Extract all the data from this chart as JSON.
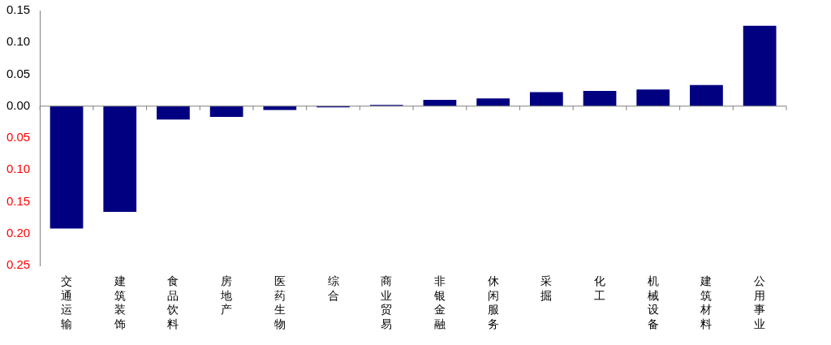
{
  "chart_data": {
    "type": "bar",
    "categories": [
      "交通运输",
      "建筑装饰",
      "食品饮料",
      "房地产",
      "医药生物",
      "综合",
      "商业贸易",
      "非银金融",
      "休闲服务",
      "采掘",
      "化工",
      "机械设备",
      "建筑材料",
      "公用事业"
    ],
    "values": [
      -0.192,
      -0.166,
      -0.021,
      -0.017,
      -0.006,
      -0.002,
      0.002,
      0.01,
      0.012,
      0.022,
      0.024,
      0.026,
      0.033,
      0.126
    ],
    "color": "#000080",
    "ylim": [
      -0.25,
      0.15
    ],
    "yticks": [
      {
        "value": -0.25,
        "label": "0.25"
      },
      {
        "value": -0.2,
        "label": "0.20"
      },
      {
        "value": -0.15,
        "label": "0.15"
      },
      {
        "value": -0.1,
        "label": "0.10"
      },
      {
        "value": -0.05,
        "label": "0.05"
      },
      {
        "value": 0,
        "label": "0.00"
      },
      {
        "value": 0.05,
        "label": "0.05"
      },
      {
        "value": 0.1,
        "label": "0.10"
      },
      {
        "value": 0.15,
        "label": "0.15"
      }
    ],
    "ref_lines": [
      {
        "axis": "y",
        "value": 0,
        "color": "#808080"
      }
    ],
    "grid": false,
    "legend": false
  }
}
